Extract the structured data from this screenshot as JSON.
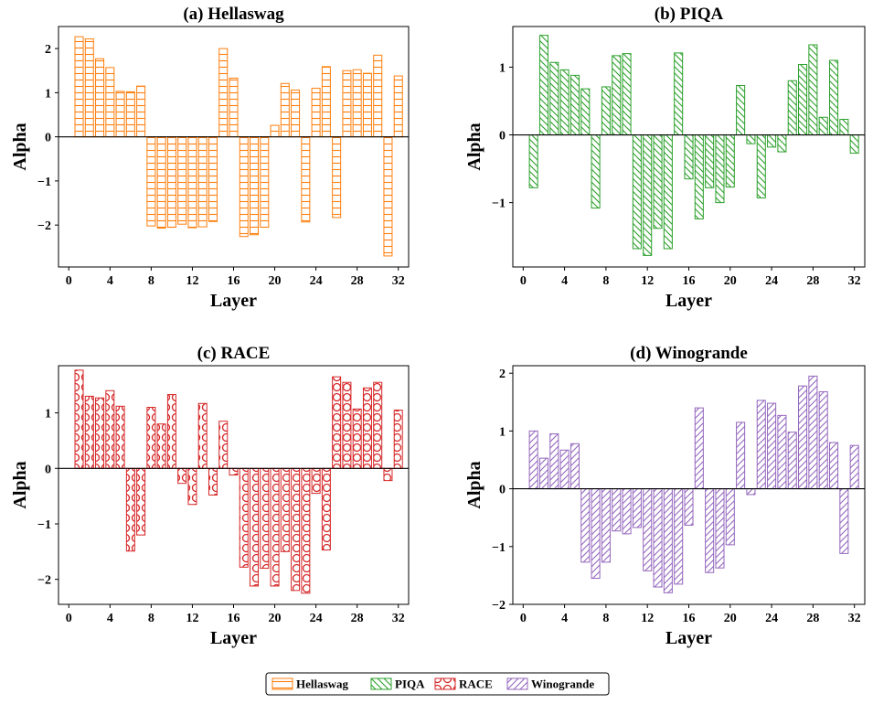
{
  "legend": {
    "entries": [
      {
        "label": "Hellaswag",
        "color": "#ff7f0e"
      },
      {
        "label": "PIQA",
        "color": "#2ca02c"
      },
      {
        "label": "RACE",
        "color": "#d62728"
      },
      {
        "label": "Winogrande",
        "color": "#9467bd"
      }
    ]
  },
  "chart_data": [
    {
      "type": "bar",
      "title": "(a) Hellaswag",
      "xlabel": "Layer",
      "ylabel": "Alpha",
      "color": "#ff7f0e",
      "hatch": "horizontal",
      "xticks": [
        0,
        4,
        8,
        12,
        16,
        20,
        24,
        28,
        32
      ],
      "yticks": [
        -2,
        -1,
        0,
        1,
        2
      ],
      "xlim": [
        -1,
        33
      ],
      "ylim": [
        -2.95,
        2.5
      ],
      "x": [
        1,
        2,
        3,
        4,
        5,
        6,
        7,
        8,
        9,
        10,
        11,
        12,
        13,
        14,
        15,
        16,
        17,
        18,
        19,
        20,
        21,
        22,
        23,
        24,
        25,
        26,
        27,
        28,
        29,
        30,
        31,
        32
      ],
      "values": [
        2.27,
        2.22,
        1.77,
        1.57,
        1.03,
        1.02,
        1.15,
        -2.02,
        -2.07,
        -2.05,
        -1.98,
        -2.06,
        -2.04,
        -1.92,
        2.0,
        1.33,
        -2.26,
        -2.22,
        -2.05,
        0.26,
        1.21,
        1.06,
        -1.93,
        1.1,
        1.59,
        -1.83,
        1.5,
        1.52,
        1.44,
        1.85,
        -2.7,
        1.38
      ]
    },
    {
      "type": "bar",
      "title": "(b) PIQA",
      "xlabel": "Layer",
      "ylabel": "Alpha",
      "color": "#2ca02c",
      "hatch": "backslash",
      "xticks": [
        0,
        4,
        8,
        12,
        16,
        20,
        24,
        28,
        32
      ],
      "yticks": [
        -1,
        0,
        1
      ],
      "xlim": [
        -1,
        33
      ],
      "ylim": [
        -1.95,
        1.6
      ],
      "x": [
        1,
        2,
        3,
        4,
        5,
        6,
        7,
        8,
        9,
        10,
        11,
        12,
        13,
        14,
        15,
        16,
        17,
        18,
        19,
        20,
        21,
        22,
        23,
        24,
        25,
        26,
        27,
        28,
        29,
        30,
        31,
        32
      ],
      "values": [
        -0.78,
        1.47,
        1.07,
        0.96,
        0.88,
        0.68,
        -1.08,
        0.71,
        1.17,
        1.2,
        -1.68,
        -1.78,
        -1.38,
        -1.68,
        1.21,
        -0.65,
        -1.24,
        -0.78,
        -1.0,
        -0.77,
        0.73,
        -0.13,
        -0.93,
        -0.18,
        -0.25,
        0.8,
        1.04,
        1.33,
        0.26,
        1.1,
        0.23,
        -0.27
      ]
    },
    {
      "type": "bar",
      "title": "(c) RACE",
      "xlabel": "Layer",
      "ylabel": "Alpha",
      "color": "#d62728",
      "hatch": "circles",
      "xticks": [
        0,
        4,
        8,
        12,
        16,
        20,
        24,
        28,
        32
      ],
      "yticks": [
        -2,
        -1,
        0,
        1
      ],
      "xlim": [
        -1,
        33
      ],
      "ylim": [
        -2.45,
        1.85
      ],
      "x": [
        1,
        2,
        3,
        4,
        5,
        6,
        7,
        8,
        9,
        10,
        11,
        12,
        13,
        14,
        15,
        16,
        17,
        18,
        19,
        20,
        21,
        22,
        23,
        24,
        25,
        26,
        27,
        28,
        29,
        30,
        31,
        32
      ],
      "values": [
        1.77,
        1.3,
        1.27,
        1.4,
        1.12,
        -1.49,
        -1.2,
        1.1,
        0.8,
        1.33,
        -0.27,
        -0.65,
        1.17,
        -0.48,
        0.85,
        -0.12,
        -1.78,
        -2.12,
        -1.8,
        -2.12,
        -1.5,
        -2.2,
        -2.25,
        -0.45,
        -1.47,
        1.65,
        1.55,
        1.07,
        1.45,
        1.55,
        -0.22,
        1.05
      ]
    },
    {
      "type": "bar",
      "title": "(d) Winogrande",
      "xlabel": "Layer",
      "ylabel": "Alpha",
      "color": "#9467bd",
      "hatch": "slash",
      "xticks": [
        0,
        4,
        8,
        12,
        16,
        20,
        24,
        28,
        32
      ],
      "yticks": [
        -2,
        -1,
        0,
        1,
        2
      ],
      "xlim": [
        -1,
        33
      ],
      "ylim": [
        -2.0,
        2.13
      ],
      "x": [
        1,
        2,
        3,
        4,
        5,
        6,
        7,
        8,
        9,
        10,
        11,
        12,
        13,
        14,
        15,
        16,
        17,
        18,
        19,
        20,
        21,
        22,
        23,
        24,
        25,
        26,
        27,
        28,
        29,
        30,
        31,
        32
      ],
      "values": [
        1.0,
        0.53,
        0.95,
        0.67,
        0.78,
        -1.27,
        -1.55,
        -1.27,
        -0.73,
        -0.78,
        -0.67,
        -1.42,
        -1.7,
        -1.8,
        -1.65,
        -0.63,
        1.4,
        -1.45,
        -1.37,
        -0.97,
        1.15,
        -0.1,
        1.53,
        1.48,
        1.27,
        0.98,
        1.78,
        1.95,
        1.68,
        0.8,
        -1.12,
        0.75
      ]
    }
  ]
}
